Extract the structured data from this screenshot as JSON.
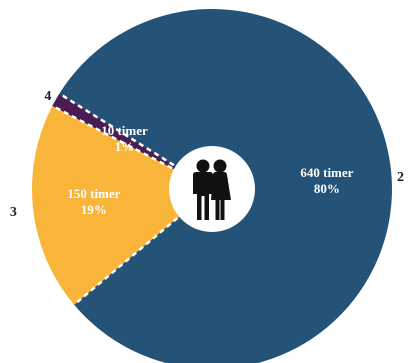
{
  "chart_data": {
    "type": "pie",
    "title": "",
    "center_icon": "couple-icon",
    "slices": [
      {
        "category": "2",
        "value": 640,
        "value_label": "640 timer",
        "percent_label": "80%",
        "color": "#255377"
      },
      {
        "category": "3",
        "value": 150,
        "value_label": "150 timer",
        "percent_label": "19%",
        "color": "#f9b43a"
      },
      {
        "category": "4",
        "value": 10,
        "value_label": "10 timer",
        "percent_label": "1%",
        "color": "#4b1c52"
      }
    ]
  }
}
